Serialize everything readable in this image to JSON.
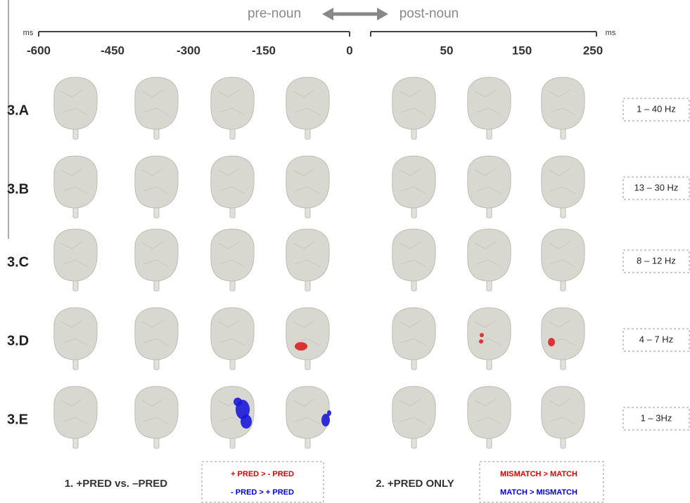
{
  "timeline": {
    "pre_label": "pre-noun",
    "post_label": "post-noun",
    "unit_left": "ms",
    "unit_right": "ms",
    "pre_ticks": [
      "-600",
      "-450",
      "-300",
      "-150",
      "0"
    ],
    "post_ticks": [
      "50",
      "150",
      "250"
    ]
  },
  "rows": [
    {
      "label": "3.A",
      "band": "1 – 40 Hz"
    },
    {
      "label": "3.B",
      "band": "13 – 30 Hz"
    },
    {
      "label": "3.C",
      "band": "8 – 12 Hz"
    },
    {
      "label": "3.D",
      "band": "4 – 7 Hz"
    },
    {
      "label": "3.E",
      "band": "1 – 3Hz"
    }
  ],
  "legend": {
    "left": {
      "title": "1. +PRED vs. –PRED",
      "red": "+ PRED > - PRED",
      "blue": "- PRED > + PRED"
    },
    "right": {
      "title": "2. +PRED ONLY",
      "red": "MISMATCH > MATCH",
      "blue": "MATCH > MISMATCH"
    }
  }
}
